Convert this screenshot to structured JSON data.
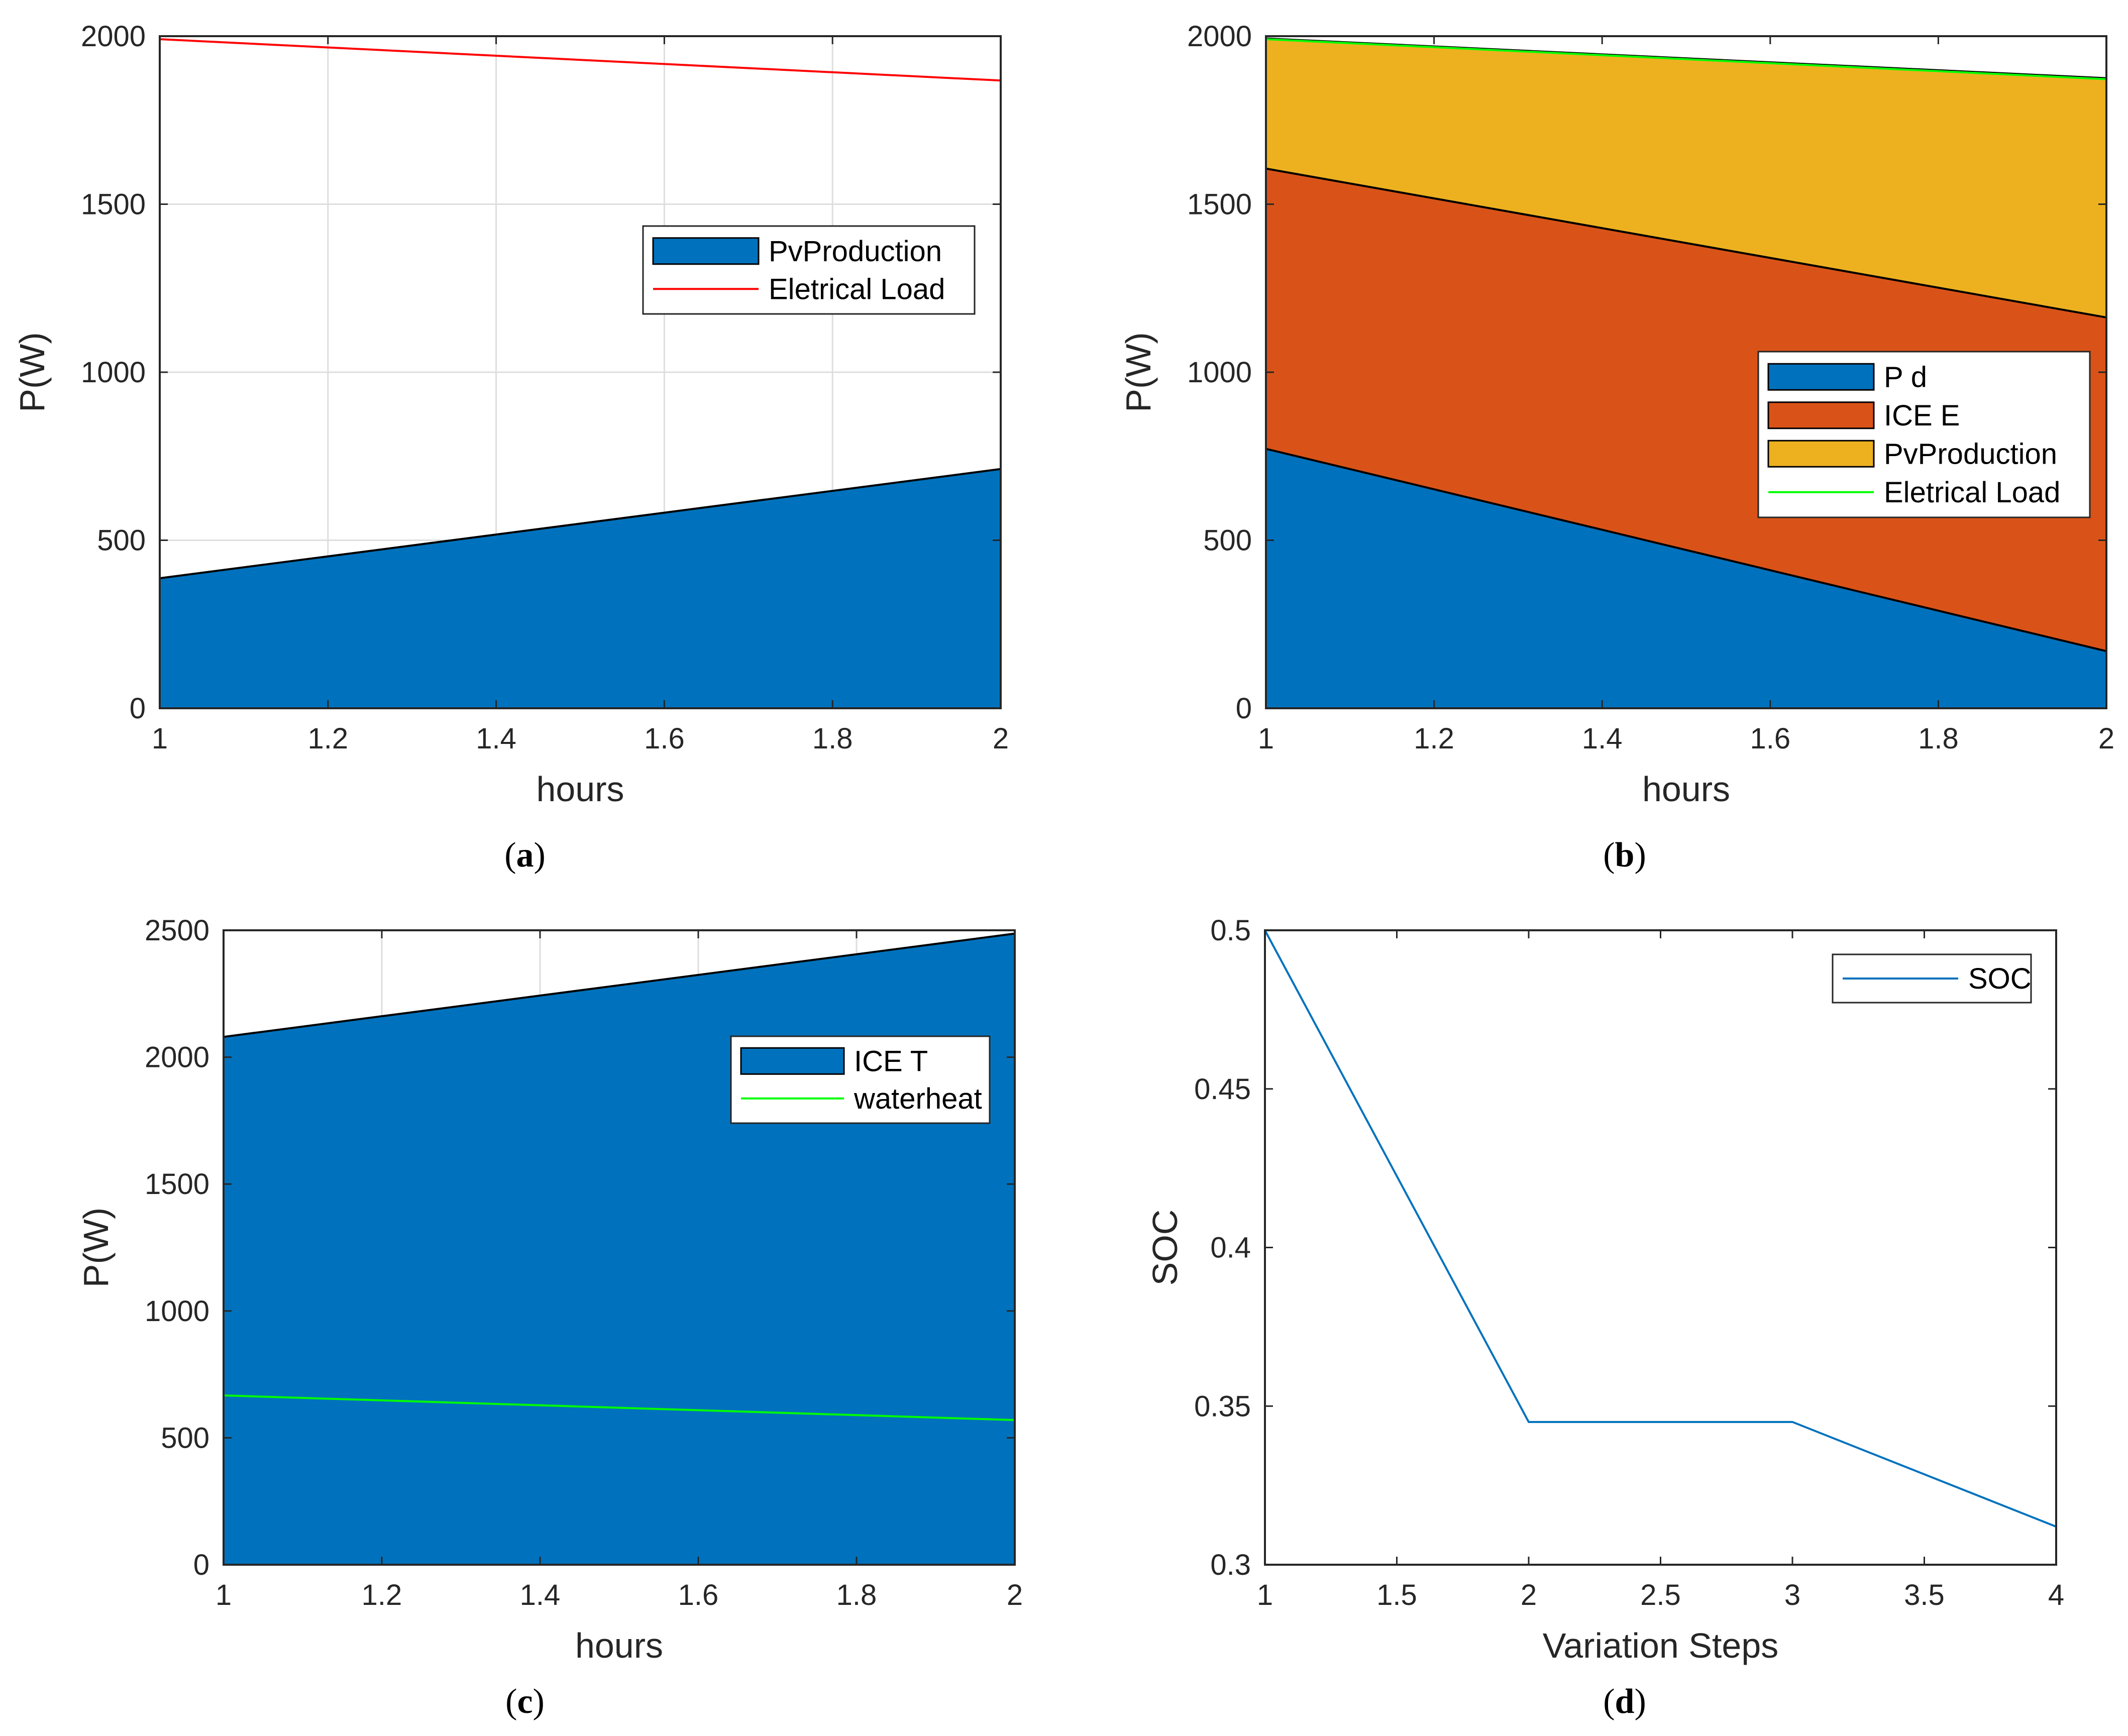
{
  "chart_data": [
    {
      "id": "a",
      "caption": "a",
      "type": "area",
      "xlabel": "hours",
      "ylabel": "P(W)",
      "xlim": [
        1,
        2
      ],
      "ylim": [
        0,
        2000
      ],
      "xticks": [
        1,
        1.2,
        1.4,
        1.6,
        1.8,
        2
      ],
      "xtick_labels": [
        "1",
        "1.2",
        "1.4",
        "1.6",
        "1.8",
        "2"
      ],
      "yticks": [
        0,
        500,
        1000,
        1500,
        2000
      ],
      "ytick_labels": [
        "0",
        "500",
        "1000",
        "1500",
        "2000"
      ],
      "grid": true,
      "legend_position": "center-right",
      "x": [
        1,
        2
      ],
      "areas": [
        {
          "name": "PvProduction",
          "color": "#0072BD",
          "values": [
            387,
            712
          ]
        }
      ],
      "lines": [
        {
          "name": "Eletrical Load",
          "color": "#FF0000",
          "values": [
            1991,
            1868
          ]
        }
      ]
    },
    {
      "id": "b",
      "caption": "b",
      "type": "area",
      "stacked": true,
      "xlabel": "hours",
      "ylabel": "P(W)",
      "xlim": [
        1,
        2
      ],
      "ylim": [
        0,
        2000
      ],
      "xticks": [
        1,
        1.2,
        1.4,
        1.6,
        1.8,
        2
      ],
      "xtick_labels": [
        "1",
        "1.2",
        "1.4",
        "1.6",
        "1.8",
        "2"
      ],
      "yticks": [
        0,
        500,
        1000,
        1500,
        2000
      ],
      "ytick_labels": [
        "0",
        "500",
        "1000",
        "1500",
        "2000"
      ],
      "grid": false,
      "legend_position": "center-right",
      "x": [
        1,
        2
      ],
      "areas": [
        {
          "name": "P d",
          "color": "#0072BD",
          "values": [
            772,
            170
          ]
        },
        {
          "name": "ICE E",
          "color": "#D95319",
          "values": [
            834,
            993
          ]
        },
        {
          "name": "PvProduction",
          "color": "#EDB120",
          "values": [
            387,
            712
          ]
        }
      ],
      "lines": [
        {
          "name": "Eletrical Load",
          "color": "#00FF00",
          "values": [
            1991,
            1872
          ]
        }
      ]
    },
    {
      "id": "c",
      "caption": "c",
      "type": "area",
      "xlabel": "hours",
      "ylabel": "P(W)",
      "xlim": [
        1,
        2
      ],
      "ylim": [
        0,
        2500
      ],
      "xticks": [
        1,
        1.2,
        1.4,
        1.6,
        1.8,
        2
      ],
      "xtick_labels": [
        "1",
        "1.2",
        "1.4",
        "1.6",
        "1.8",
        "2"
      ],
      "yticks": [
        0,
        500,
        1000,
        1500,
        2000,
        2500
      ],
      "ytick_labels": [
        "0",
        "500",
        "1000",
        "1500",
        "2000",
        "2500"
      ],
      "grid": true,
      "legend_position": "upper-right",
      "x": [
        1,
        2
      ],
      "areas": [
        {
          "name": "ICE T",
          "color": "#0072BD",
          "values": [
            2080,
            2487
          ]
        }
      ],
      "lines": [
        {
          "name": "waterheat",
          "color": "#00FF00",
          "values": [
            667,
            570
          ]
        }
      ]
    },
    {
      "id": "d",
      "caption": "d",
      "type": "line",
      "xlabel": "Variation Steps",
      "ylabel": "SOC",
      "xlim": [
        1,
        4
      ],
      "ylim": [
        0.3,
        0.5
      ],
      "xticks": [
        1,
        1.5,
        2,
        2.5,
        3,
        3.5,
        4
      ],
      "xtick_labels": [
        "1",
        "1.5",
        "2",
        "2.5",
        "3",
        "3.5",
        "4"
      ],
      "yticks": [
        0.3,
        0.35,
        0.4,
        0.45,
        0.5
      ],
      "ytick_labels": [
        "0.3",
        "0.35",
        "0.4",
        "0.45",
        "0.5"
      ],
      "grid": false,
      "legend_position": "upper-right",
      "x": [
        1,
        2,
        3,
        4
      ],
      "areas": [],
      "lines": [
        {
          "name": "SOC",
          "color": "#0072BD",
          "values": [
            0.5,
            0.345,
            0.345,
            0.312
          ]
        }
      ]
    }
  ]
}
